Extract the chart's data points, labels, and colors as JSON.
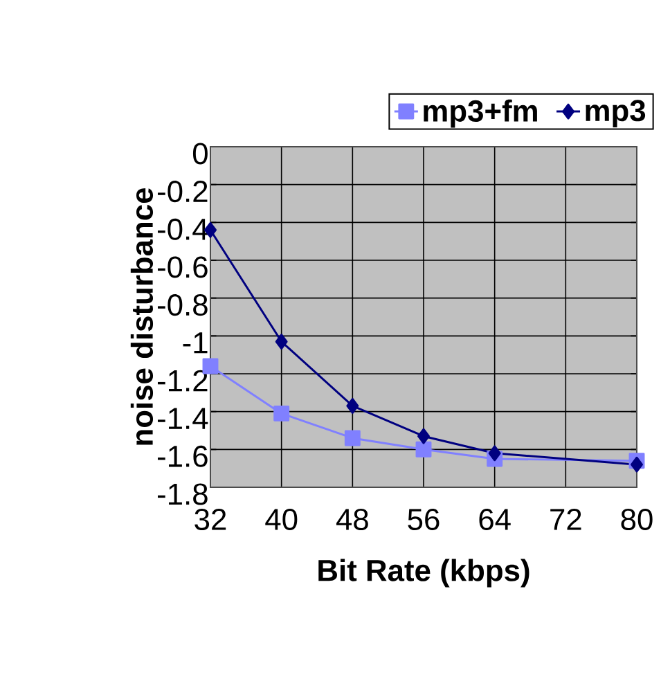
{
  "chart_data": {
    "type": "line",
    "xlabel": "Bit Rate (kbps)",
    "ylabel": "noise disturbance",
    "x": [
      32,
      40,
      48,
      56,
      64,
      80
    ],
    "series": [
      {
        "name": "mp3+fm",
        "color": "#8080ff",
        "marker": "square",
        "values": [
          -1.16,
          -1.41,
          -1.54,
          -1.6,
          -1.65,
          -1.66
        ]
      },
      {
        "name": "mp3",
        "color": "#000080",
        "marker": "diamond",
        "values": [
          -0.44,
          -1.03,
          -1.37,
          -1.53,
          -1.62,
          -1.68
        ]
      }
    ],
    "xlim": [
      32,
      80
    ],
    "xticks": [
      32,
      40,
      48,
      56,
      64,
      72,
      80
    ],
    "ylim": [
      -1.8,
      0
    ],
    "yticks": [
      0,
      -0.2,
      -0.4,
      -0.6,
      -0.8,
      -1,
      -1.2,
      -1.4,
      -1.6,
      -1.8
    ],
    "grid": true,
    "legend": "top"
  }
}
